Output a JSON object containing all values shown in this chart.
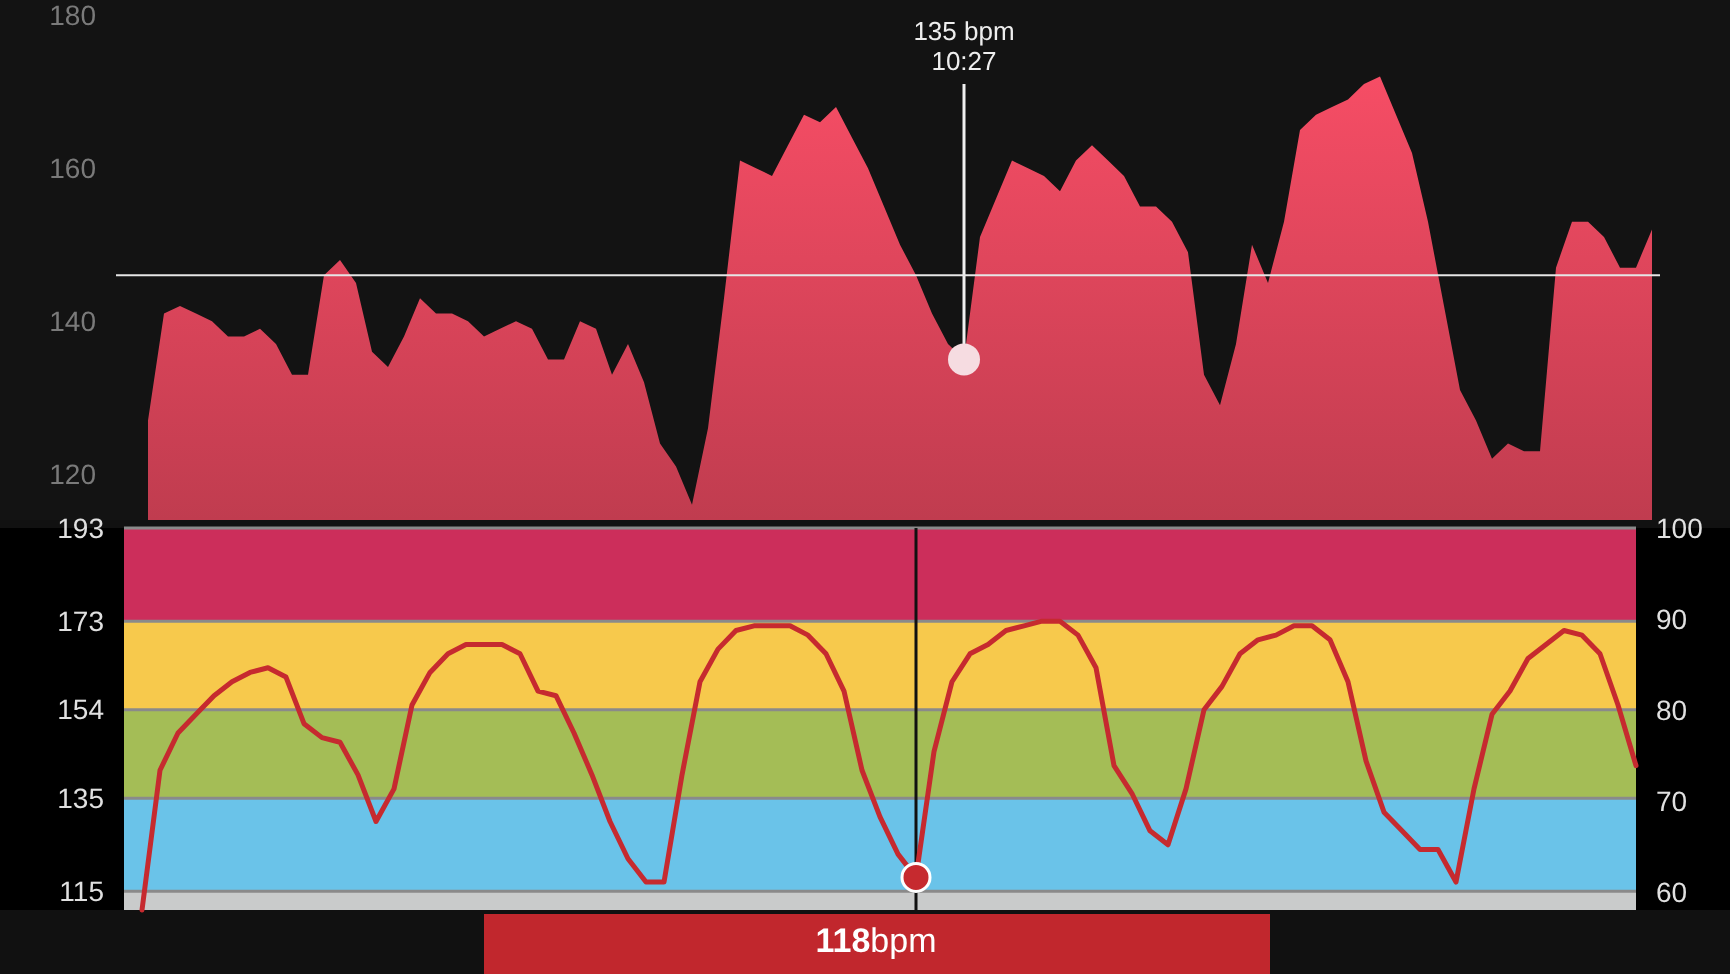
{
  "chart_data": [
    {
      "type": "area",
      "categories": [
        null,
        null,
        null,
        null,
        null,
        null,
        null,
        null,
        null,
        null,
        null,
        null,
        null,
        null,
        null,
        null,
        null,
        null,
        null,
        null,
        null,
        null,
        null,
        null,
        null,
        null,
        null,
        null,
        null,
        null,
        null,
        null,
        null,
        null,
        null,
        null,
        null,
        null,
        null,
        null,
        null,
        null,
        null,
        null,
        null,
        null,
        null,
        null,
        null,
        null,
        null,
        null,
        null,
        null,
        null,
        null,
        null,
        null,
        null,
        null,
        null,
        null,
        null,
        null,
        null,
        null,
        null,
        null,
        null,
        null,
        null,
        null,
        null,
        null,
        null,
        null,
        null,
        null,
        null,
        null,
        null,
        null,
        null,
        null,
        null,
        null,
        null,
        null,
        null,
        null,
        null,
        null,
        null,
        null,
        null
      ],
      "series": [
        {
          "color": "#d94459",
          "values": [
            127,
            141,
            142,
            141,
            140,
            138,
            138,
            139,
            137,
            133,
            133,
            146,
            148,
            145,
            136,
            134,
            138,
            143,
            141,
            141,
            140,
            138,
            139,
            140,
            139,
            135,
            135,
            140,
            139,
            133,
            137,
            132,
            124,
            121,
            116,
            126,
            143,
            161,
            160,
            159,
            163,
            167,
            166,
            168,
            164,
            160,
            155,
            150,
            146,
            141,
            137,
            135,
            151,
            156,
            161,
            160,
            159,
            157,
            161,
            163,
            161,
            159,
            155,
            155,
            153,
            149,
            133,
            129,
            137,
            150,
            145,
            153,
            165,
            167,
            168,
            169,
            171,
            172,
            167,
            162,
            153,
            142,
            131,
            127,
            122,
            124,
            123,
            123,
            147,
            153,
            153,
            151,
            147,
            147,
            152
          ]
        },
        {
          "type": "scatter",
          "color": "#f6dce1",
          "marker": "circle",
          "values": [
            null,
            null,
            null,
            null,
            null,
            null,
            null,
            null,
            null,
            null,
            null,
            null,
            null,
            null,
            null,
            null,
            null,
            null,
            null,
            null,
            null,
            null,
            null,
            null,
            null,
            null,
            null,
            null,
            null,
            null,
            null,
            null,
            null,
            null,
            null,
            null,
            null,
            null,
            null,
            null,
            null,
            null,
            null,
            null,
            null,
            null,
            null,
            null,
            null,
            null,
            null,
            135,
            null,
            null,
            null,
            null,
            null,
            null,
            null,
            null,
            null,
            null,
            null,
            null,
            null,
            null,
            null,
            null,
            null,
            null,
            null,
            null,
            null,
            null,
            null,
            null,
            null,
            null,
            null,
            null,
            null,
            null,
            null,
            null,
            null,
            null,
            null,
            null,
            null,
            null,
            null,
            null,
            null,
            null,
            null
          ]
        }
      ],
      "ylim": [
        114,
        182
      ],
      "yticks": [
        120,
        140,
        160,
        180
      ],
      "ref_lines": [
        {
          "axis": "y",
          "value": 146,
          "color": "#e6e6e6"
        }
      ],
      "annotations": [
        "135 bpm",
        "10:27"
      ]
    },
    {
      "type": "line",
      "categories": [
        null,
        null,
        null,
        null,
        null,
        null,
        null,
        null,
        null,
        null,
        null,
        null,
        null,
        null,
        null,
        null,
        null,
        null,
        null,
        null,
        null,
        null,
        null,
        null,
        null,
        null,
        null,
        null,
        null,
        null,
        null,
        null,
        null,
        null,
        null,
        null,
        null,
        null,
        null,
        null,
        null,
        null,
        null,
        null,
        null,
        null,
        null,
        null,
        null,
        null,
        null,
        null,
        null,
        null,
        null,
        null,
        null,
        null,
        null,
        null,
        null,
        null,
        null,
        null,
        null,
        null,
        null,
        null,
        null,
        null,
        null,
        null,
        null,
        null,
        null,
        null,
        null,
        null,
        null,
        null,
        null,
        null,
        null,
        null
      ],
      "series": [
        {
          "color": "#c62a2f",
          "values": [
            111,
            141,
            149,
            153,
            157,
            160,
            162,
            163,
            161,
            151,
            148,
            147,
            140,
            130,
            137,
            155,
            162,
            166,
            168,
            168,
            168,
            166,
            158,
            157,
            149,
            140,
            130,
            122,
            117,
            117,
            140,
            160,
            167,
            171,
            172,
            172,
            172,
            170,
            166,
            158,
            141,
            131,
            123,
            118,
            145,
            160,
            166,
            168,
            171,
            172,
            173,
            173,
            170,
            163,
            142,
            136,
            128,
            125,
            137,
            154,
            159,
            166,
            169,
            170,
            172,
            172,
            169,
            160,
            143,
            132,
            128,
            124,
            124,
            117,
            137,
            153,
            158,
            165,
            168,
            171,
            170,
            166,
            155,
            142
          ]
        },
        {
          "type": "scatter",
          "color": "#c62a2f",
          "marker": "circle",
          "values": [
            null,
            null,
            null,
            null,
            null,
            null,
            null,
            null,
            null,
            null,
            null,
            null,
            null,
            null,
            null,
            null,
            null,
            null,
            null,
            null,
            null,
            null,
            null,
            null,
            null,
            null,
            null,
            null,
            null,
            null,
            null,
            null,
            null,
            null,
            null,
            null,
            null,
            null,
            null,
            null,
            null,
            null,
            null,
            118,
            null,
            null,
            null,
            null,
            null,
            null,
            null,
            null,
            null,
            null,
            null,
            null,
            null,
            null,
            null,
            null,
            null,
            null,
            null,
            null,
            null,
            null,
            null,
            null,
            null,
            null,
            null,
            null,
            null,
            null,
            null,
            null,
            null,
            null,
            null,
            null,
            null,
            null,
            null,
            null
          ]
        }
      ],
      "ylim": [
        111,
        193
      ],
      "yticks": [
        115,
        135,
        154,
        173,
        193
      ],
      "y2lim": [
        58,
        100
      ],
      "y2ticks": [
        60,
        70,
        80,
        90,
        100
      ],
      "grid": "y",
      "bands": [
        {
          "axis": "y",
          "from": 173,
          "to": 193,
          "color": "#cc2e5b"
        },
        {
          "axis": "y",
          "from": 154,
          "to": 173,
          "color": "#f7c94c"
        },
        {
          "axis": "y",
          "from": 135,
          "to": 154,
          "color": "#a4bd56"
        },
        {
          "axis": "y",
          "from": 115,
          "to": 135,
          "color": "#6ac3e9"
        },
        {
          "axis": "y",
          "from": 111,
          "to": 115,
          "color": "#c9cbcb"
        }
      ],
      "annotations": [
        "118bpm"
      ]
    }
  ]
}
